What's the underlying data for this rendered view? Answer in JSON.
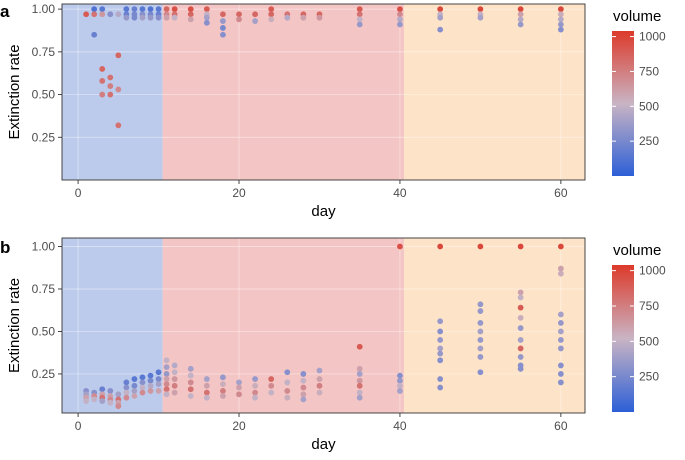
{
  "chart_data": [
    {
      "type": "scatter",
      "panel_label": "a",
      "xlabel": "day",
      "ylabel": "Extinction rate",
      "xlim": [
        -2,
        63
      ],
      "ylim": [
        0,
        1.03
      ],
      "x_ticks": [
        0,
        20,
        40,
        60
      ],
      "y_ticks": [
        0.25,
        0.5,
        0.75,
        1.0
      ],
      "x_tick_labels": [
        "0",
        "20",
        "40",
        "60"
      ],
      "y_tick_labels": [
        "0.25",
        "0.50",
        "0.75",
        "1.00"
      ],
      "grid": true,
      "legend_position": "right",
      "background_bands": [
        {
          "x0": -2,
          "x1": 10.5,
          "color": "#bccbec"
        },
        {
          "x0": 10.5,
          "x1": 40.5,
          "color": "#f3c5c4"
        },
        {
          "x0": 40.5,
          "x1": 63,
          "color": "#fde3c7"
        }
      ],
      "points": [
        [
          1,
          0.97,
          900
        ],
        [
          2,
          1.0,
          120
        ],
        [
          2,
          0.97,
          800
        ],
        [
          2,
          0.85,
          200
        ],
        [
          3,
          1.0,
          150
        ],
        [
          3,
          0.97,
          650
        ],
        [
          3,
          0.65,
          850
        ],
        [
          3,
          0.58,
          800
        ],
        [
          3,
          0.5,
          750
        ],
        [
          4,
          0.97,
          450
        ],
        [
          4,
          0.6,
          800
        ],
        [
          4,
          0.55,
          750
        ],
        [
          4,
          0.5,
          800
        ],
        [
          4,
          0.97,
          300
        ],
        [
          5,
          0.97,
          450
        ],
        [
          5,
          0.73,
          850
        ],
        [
          5,
          0.53,
          700
        ],
        [
          5,
          0.32,
          800
        ],
        [
          6,
          1.0,
          150
        ],
        [
          6,
          0.97,
          200
        ],
        [
          6,
          0.95,
          350
        ],
        [
          7,
          1.0,
          200
        ],
        [
          7,
          0.97,
          250
        ],
        [
          7,
          0.95,
          250
        ],
        [
          8,
          1.0,
          150
        ],
        [
          8,
          0.97,
          300
        ],
        [
          8,
          0.95,
          400
        ],
        [
          9,
          1.0,
          120
        ],
        [
          9,
          0.97,
          250
        ],
        [
          9,
          0.95,
          350
        ],
        [
          10,
          1.0,
          150
        ],
        [
          10,
          0.97,
          200
        ],
        [
          10,
          0.95,
          300
        ],
        [
          11,
          1.0,
          850
        ],
        [
          11,
          0.97,
          700
        ],
        [
          11,
          0.95,
          600
        ],
        [
          12,
          1.0,
          950
        ],
        [
          12,
          0.97,
          800
        ],
        [
          12,
          0.95,
          500
        ],
        [
          14,
          1.0,
          950
        ],
        [
          14,
          0.97,
          850
        ],
        [
          14,
          0.94,
          600
        ],
        [
          16,
          1.0,
          900
        ],
        [
          16,
          0.97,
          500
        ],
        [
          16,
          0.95,
          400
        ],
        [
          16,
          0.92,
          300
        ],
        [
          18,
          0.97,
          850
        ],
        [
          18,
          0.93,
          350
        ],
        [
          18,
          0.89,
          250
        ],
        [
          18,
          0.85,
          300
        ],
        [
          20,
          0.97,
          850
        ],
        [
          20,
          0.94,
          700
        ],
        [
          22,
          0.97,
          850
        ],
        [
          22,
          0.93,
          400
        ],
        [
          24,
          1.0,
          900
        ],
        [
          24,
          0.97,
          850
        ],
        [
          24,
          0.94,
          550
        ],
        [
          26,
          0.97,
          800
        ],
        [
          26,
          0.95,
          450
        ],
        [
          28,
          0.97,
          850
        ],
        [
          28,
          0.95,
          600
        ],
        [
          30,
          0.97,
          850
        ],
        [
          30,
          0.95,
          650
        ],
        [
          35,
          1.0,
          900
        ],
        [
          35,
          0.97,
          800
        ],
        [
          35,
          0.94,
          500
        ],
        [
          35,
          0.91,
          350
        ],
        [
          40,
          1.0,
          950
        ],
        [
          40,
          0.97,
          700
        ],
        [
          40,
          0.94,
          450
        ],
        [
          40,
          0.91,
          350
        ],
        [
          45,
          1.0,
          980
        ],
        [
          45,
          0.97,
          500
        ],
        [
          45,
          0.95,
          400
        ],
        [
          45,
          0.88,
          300
        ],
        [
          50,
          1.0,
          980
        ],
        [
          50,
          0.97,
          500
        ],
        [
          50,
          0.95,
          400
        ],
        [
          55,
          1.0,
          980
        ],
        [
          55,
          0.97,
          600
        ],
        [
          55,
          0.94,
          450
        ],
        [
          55,
          0.91,
          350
        ],
        [
          60,
          1.0,
          980
        ],
        [
          60,
          0.97,
          550
        ],
        [
          60,
          0.94,
          450
        ],
        [
          60,
          0.91,
          350
        ],
        [
          60,
          0.88,
          300
        ]
      ]
    },
    {
      "type": "scatter",
      "panel_label": "b",
      "xlabel": "day",
      "ylabel": "Extinction rate",
      "xlim": [
        -2,
        63
      ],
      "ylim": [
        0.02,
        1.05
      ],
      "x_ticks": [
        0,
        20,
        40,
        60
      ],
      "y_ticks": [
        0.25,
        0.5,
        0.75,
        1.0
      ],
      "x_tick_labels": [
        "0",
        "20",
        "40",
        "60"
      ],
      "y_tick_labels": [
        "0.25",
        "0.50",
        "0.75",
        "1.00"
      ],
      "grid": true,
      "legend_position": "right",
      "background_bands": [
        {
          "x0": -2,
          "x1": 10.5,
          "color": "#bccbec"
        },
        {
          "x0": 10.5,
          "x1": 40.5,
          "color": "#f3c5c4"
        },
        {
          "x0": 40.5,
          "x1": 63,
          "color": "#fde3c7"
        }
      ],
      "points": [
        [
          1,
          0.15,
          300
        ],
        [
          1,
          0.13,
          400
        ],
        [
          1,
          0.11,
          600
        ],
        [
          1,
          0.09,
          500
        ],
        [
          2,
          0.14,
          300
        ],
        [
          2,
          0.12,
          700
        ],
        [
          2,
          0.1,
          500
        ],
        [
          3,
          0.16,
          200
        ],
        [
          3,
          0.13,
          600
        ],
        [
          3,
          0.11,
          800
        ],
        [
          3,
          0.09,
          400
        ],
        [
          4,
          0.15,
          300
        ],
        [
          4,
          0.12,
          600
        ],
        [
          4,
          0.1,
          700
        ],
        [
          4,
          0.08,
          500
        ],
        [
          5,
          0.13,
          400
        ],
        [
          5,
          0.1,
          800
        ],
        [
          5,
          0.08,
          600
        ],
        [
          5,
          0.06,
          700
        ],
        [
          6,
          0.2,
          200
        ],
        [
          6,
          0.17,
          300
        ],
        [
          6,
          0.14,
          500
        ],
        [
          6,
          0.11,
          700
        ],
        [
          7,
          0.22,
          150
        ],
        [
          7,
          0.18,
          250
        ],
        [
          7,
          0.15,
          400
        ],
        [
          7,
          0.12,
          600
        ],
        [
          8,
          0.23,
          150
        ],
        [
          8,
          0.2,
          300
        ],
        [
          8,
          0.17,
          500
        ],
        [
          8,
          0.14,
          700
        ],
        [
          9,
          0.24,
          150
        ],
        [
          9,
          0.21,
          250
        ],
        [
          9,
          0.18,
          450
        ],
        [
          9,
          0.15,
          650
        ],
        [
          10,
          0.26,
          150
        ],
        [
          10,
          0.22,
          250
        ],
        [
          10,
          0.19,
          400
        ],
        [
          10,
          0.15,
          600
        ],
        [
          11,
          0.33,
          500
        ],
        [
          11,
          0.29,
          400
        ],
        [
          11,
          0.25,
          350
        ],
        [
          11,
          0.22,
          600
        ],
        [
          11,
          0.19,
          700
        ],
        [
          11,
          0.16,
          800
        ],
        [
          11,
          0.13,
          500
        ],
        [
          12,
          0.3,
          450
        ],
        [
          12,
          0.26,
          500
        ],
        [
          12,
          0.22,
          650
        ],
        [
          12,
          0.18,
          750
        ],
        [
          12,
          0.14,
          600
        ],
        [
          14,
          0.28,
          400
        ],
        [
          14,
          0.24,
          500
        ],
        [
          14,
          0.2,
          700
        ],
        [
          14,
          0.16,
          800
        ],
        [
          14,
          0.12,
          500
        ],
        [
          16,
          0.22,
          400
        ],
        [
          16,
          0.18,
          600
        ],
        [
          16,
          0.14,
          800
        ],
        [
          16,
          0.11,
          500
        ],
        [
          18,
          0.23,
          350
        ],
        [
          18,
          0.19,
          550
        ],
        [
          18,
          0.15,
          750
        ],
        [
          18,
          0.12,
          600
        ],
        [
          20,
          0.2,
          400
        ],
        [
          20,
          0.17,
          600
        ],
        [
          20,
          0.13,
          700
        ],
        [
          22,
          0.22,
          350
        ],
        [
          22,
          0.18,
          550
        ],
        [
          22,
          0.14,
          700
        ],
        [
          22,
          0.11,
          500
        ],
        [
          24,
          0.22,
          850
        ],
        [
          24,
          0.18,
          700
        ],
        [
          24,
          0.14,
          500
        ],
        [
          26,
          0.26,
          300
        ],
        [
          26,
          0.2,
          500
        ],
        [
          26,
          0.15,
          700
        ],
        [
          26,
          0.11,
          550
        ],
        [
          28,
          0.25,
          300
        ],
        [
          28,
          0.21,
          500
        ],
        [
          28,
          0.17,
          700
        ],
        [
          28,
          0.13,
          600
        ],
        [
          28,
          0.1,
          400
        ],
        [
          30,
          0.27,
          400
        ],
        [
          30,
          0.22,
          600
        ],
        [
          30,
          0.18,
          750
        ],
        [
          30,
          0.14,
          550
        ],
        [
          35,
          0.41,
          900
        ],
        [
          35,
          0.28,
          600
        ],
        [
          35,
          0.25,
          400
        ],
        [
          35,
          0.21,
          650
        ],
        [
          35,
          0.18,
          800
        ],
        [
          35,
          0.14,
          500
        ],
        [
          35,
          0.11,
          400
        ],
        [
          40,
          1.0,
          950
        ],
        [
          40,
          0.24,
          300
        ],
        [
          40,
          0.21,
          350
        ],
        [
          40,
          0.18,
          500
        ],
        [
          40,
          0.15,
          400
        ],
        [
          45,
          1.0,
          980
        ],
        [
          45,
          0.56,
          350
        ],
        [
          45,
          0.5,
          300
        ],
        [
          45,
          0.45,
          350
        ],
        [
          45,
          0.4,
          400
        ],
        [
          45,
          0.37,
          350
        ],
        [
          45,
          0.33,
          300
        ],
        [
          45,
          0.22,
          300
        ],
        [
          45,
          0.17,
          300
        ],
        [
          50,
          1.0,
          980
        ],
        [
          50,
          0.66,
          350
        ],
        [
          50,
          0.62,
          350
        ],
        [
          50,
          0.55,
          350
        ],
        [
          50,
          0.5,
          400
        ],
        [
          50,
          0.45,
          350
        ],
        [
          50,
          0.4,
          400
        ],
        [
          50,
          0.35,
          350
        ],
        [
          50,
          0.26,
          300
        ],
        [
          55,
          1.0,
          980
        ],
        [
          55,
          0.73,
          600
        ],
        [
          55,
          0.7,
          500
        ],
        [
          55,
          0.64,
          900
        ],
        [
          55,
          0.58,
          550
        ],
        [
          55,
          0.52,
          350
        ],
        [
          55,
          0.45,
          400
        ],
        [
          55,
          0.4,
          850
        ],
        [
          55,
          0.35,
          350
        ],
        [
          55,
          0.3,
          300
        ],
        [
          55,
          0.28,
          300
        ],
        [
          60,
          1.0,
          980
        ],
        [
          60,
          0.87,
          600
        ],
        [
          60,
          0.84,
          550
        ],
        [
          60,
          0.6,
          400
        ],
        [
          60,
          0.55,
          350
        ],
        [
          60,
          0.5,
          400
        ],
        [
          60,
          0.45,
          350
        ],
        [
          60,
          0.4,
          350
        ],
        [
          60,
          0.3,
          300
        ],
        [
          60,
          0.25,
          300
        ],
        [
          60,
          0.2,
          300
        ]
      ]
    }
  ],
  "legend": {
    "title": "volume",
    "ticks": [
      250,
      500,
      750,
      1000
    ],
    "tick_labels": [
      "250",
      "500",
      "750",
      "1000"
    ],
    "range": [
      0,
      1040
    ],
    "color_low": "#2c5fd6",
    "color_mid": "#c9b4c4",
    "color_high": "#dc3a2a"
  }
}
